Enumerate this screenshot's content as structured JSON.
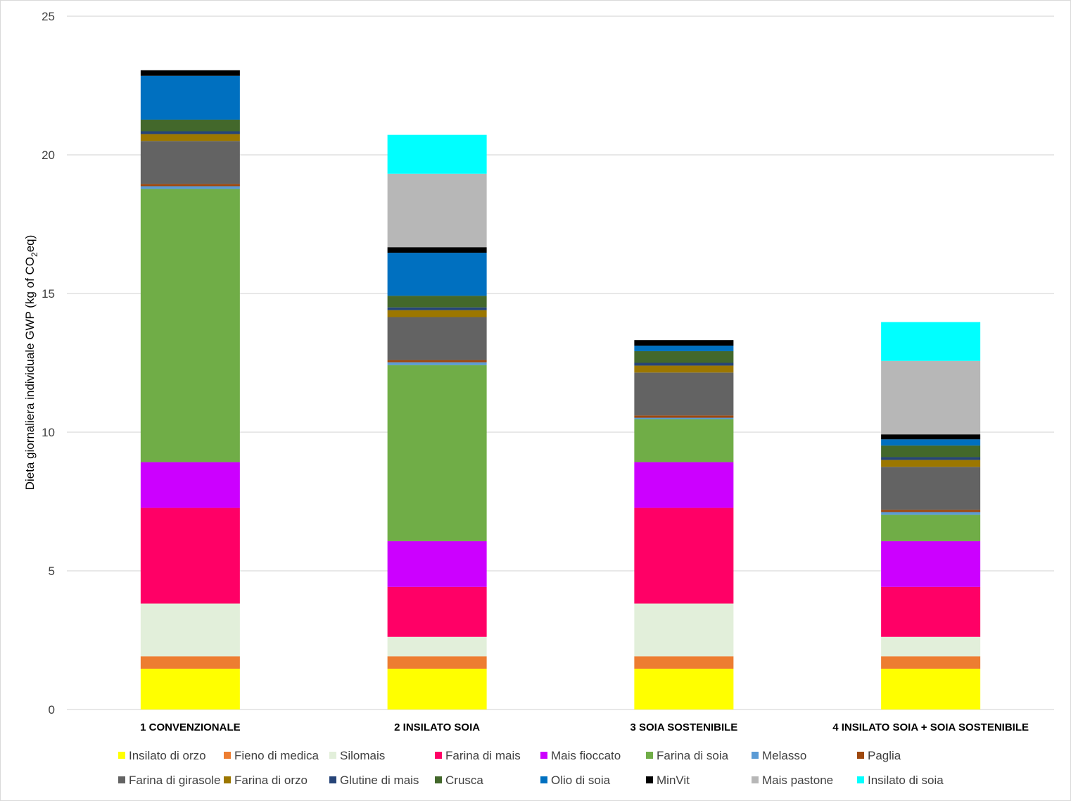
{
  "chart_data": {
    "type": "bar",
    "stacked": true,
    "title": "",
    "xlabel": "",
    "ylabel": "Dieta giornaliera individuale GWP (kg of CO2eq)",
    "ylabel_parts": {
      "before": "Dieta giornaliera individuale GWP (kg of CO",
      "sub": "2",
      "after": "eq)"
    },
    "ylim": [
      0,
      25
    ],
    "yticks": [
      0,
      5,
      10,
      15,
      20,
      25
    ],
    "grid": true,
    "legend_position": "bottom",
    "categories": [
      "1 CONVENZIONALE",
      "2 INSILATO SOIA",
      "3 SOIA SOSTENIBILE",
      "4 INSILATO SOIA + SOIA SOSTENIBILE"
    ],
    "series": [
      {
        "name": "Insilato di orzo",
        "color": "#FFFF00",
        "values": [
          1.47,
          1.47,
          1.47,
          1.47
        ]
      },
      {
        "name": "Fieno di medica",
        "color": "#ED7D31",
        "values": [
          0.45,
          0.45,
          0.45,
          0.45
        ]
      },
      {
        "name": "Silomais",
        "color": "#E2EFDA",
        "values": [
          1.9,
          0.7,
          1.9,
          0.7
        ]
      },
      {
        "name": "Farina di mais",
        "color": "#FF0066",
        "values": [
          3.45,
          1.8,
          3.45,
          1.8
        ]
      },
      {
        "name": "Mais fioccato",
        "color": "#CC00FF",
        "values": [
          1.65,
          1.65,
          1.65,
          1.65
        ]
      },
      {
        "name": "Farina di soia",
        "color": "#70AD47",
        "values": [
          9.85,
          6.35,
          1.55,
          0.95
        ]
      },
      {
        "name": "Melasso",
        "color": "#5B9BD5",
        "values": [
          0.1,
          0.1,
          0.05,
          0.1
        ]
      },
      {
        "name": "Paglia",
        "color": "#9E480E",
        "values": [
          0.08,
          0.08,
          0.08,
          0.08
        ]
      },
      {
        "name": "Farina di girasole",
        "color": "#636363",
        "values": [
          1.55,
          1.55,
          1.55,
          1.55
        ]
      },
      {
        "name": "Farina di orzo",
        "color": "#9C7700",
        "values": [
          0.25,
          0.25,
          0.25,
          0.25
        ]
      },
      {
        "name": "Glutine di mais",
        "color": "#264478",
        "values": [
          0.1,
          0.1,
          0.1,
          0.1
        ]
      },
      {
        "name": "Crusca",
        "color": "#43682B",
        "values": [
          0.42,
          0.42,
          0.42,
          0.42
        ]
      },
      {
        "name": "Olio di soia",
        "color": "#0070C0",
        "values": [
          1.58,
          1.55,
          0.2,
          0.22
        ]
      },
      {
        "name": "MinVit",
        "color": "#000000",
        "values": [
          0.2,
          0.2,
          0.2,
          0.18
        ]
      },
      {
        "name": "Mais pastone",
        "color": "#B7B7B7",
        "values": [
          0.0,
          2.65,
          0.0,
          2.65
        ]
      },
      {
        "name": "Insilato di soia",
        "color": "#00FFFF",
        "values": [
          0.0,
          1.4,
          0.0,
          1.4
        ]
      }
    ]
  }
}
